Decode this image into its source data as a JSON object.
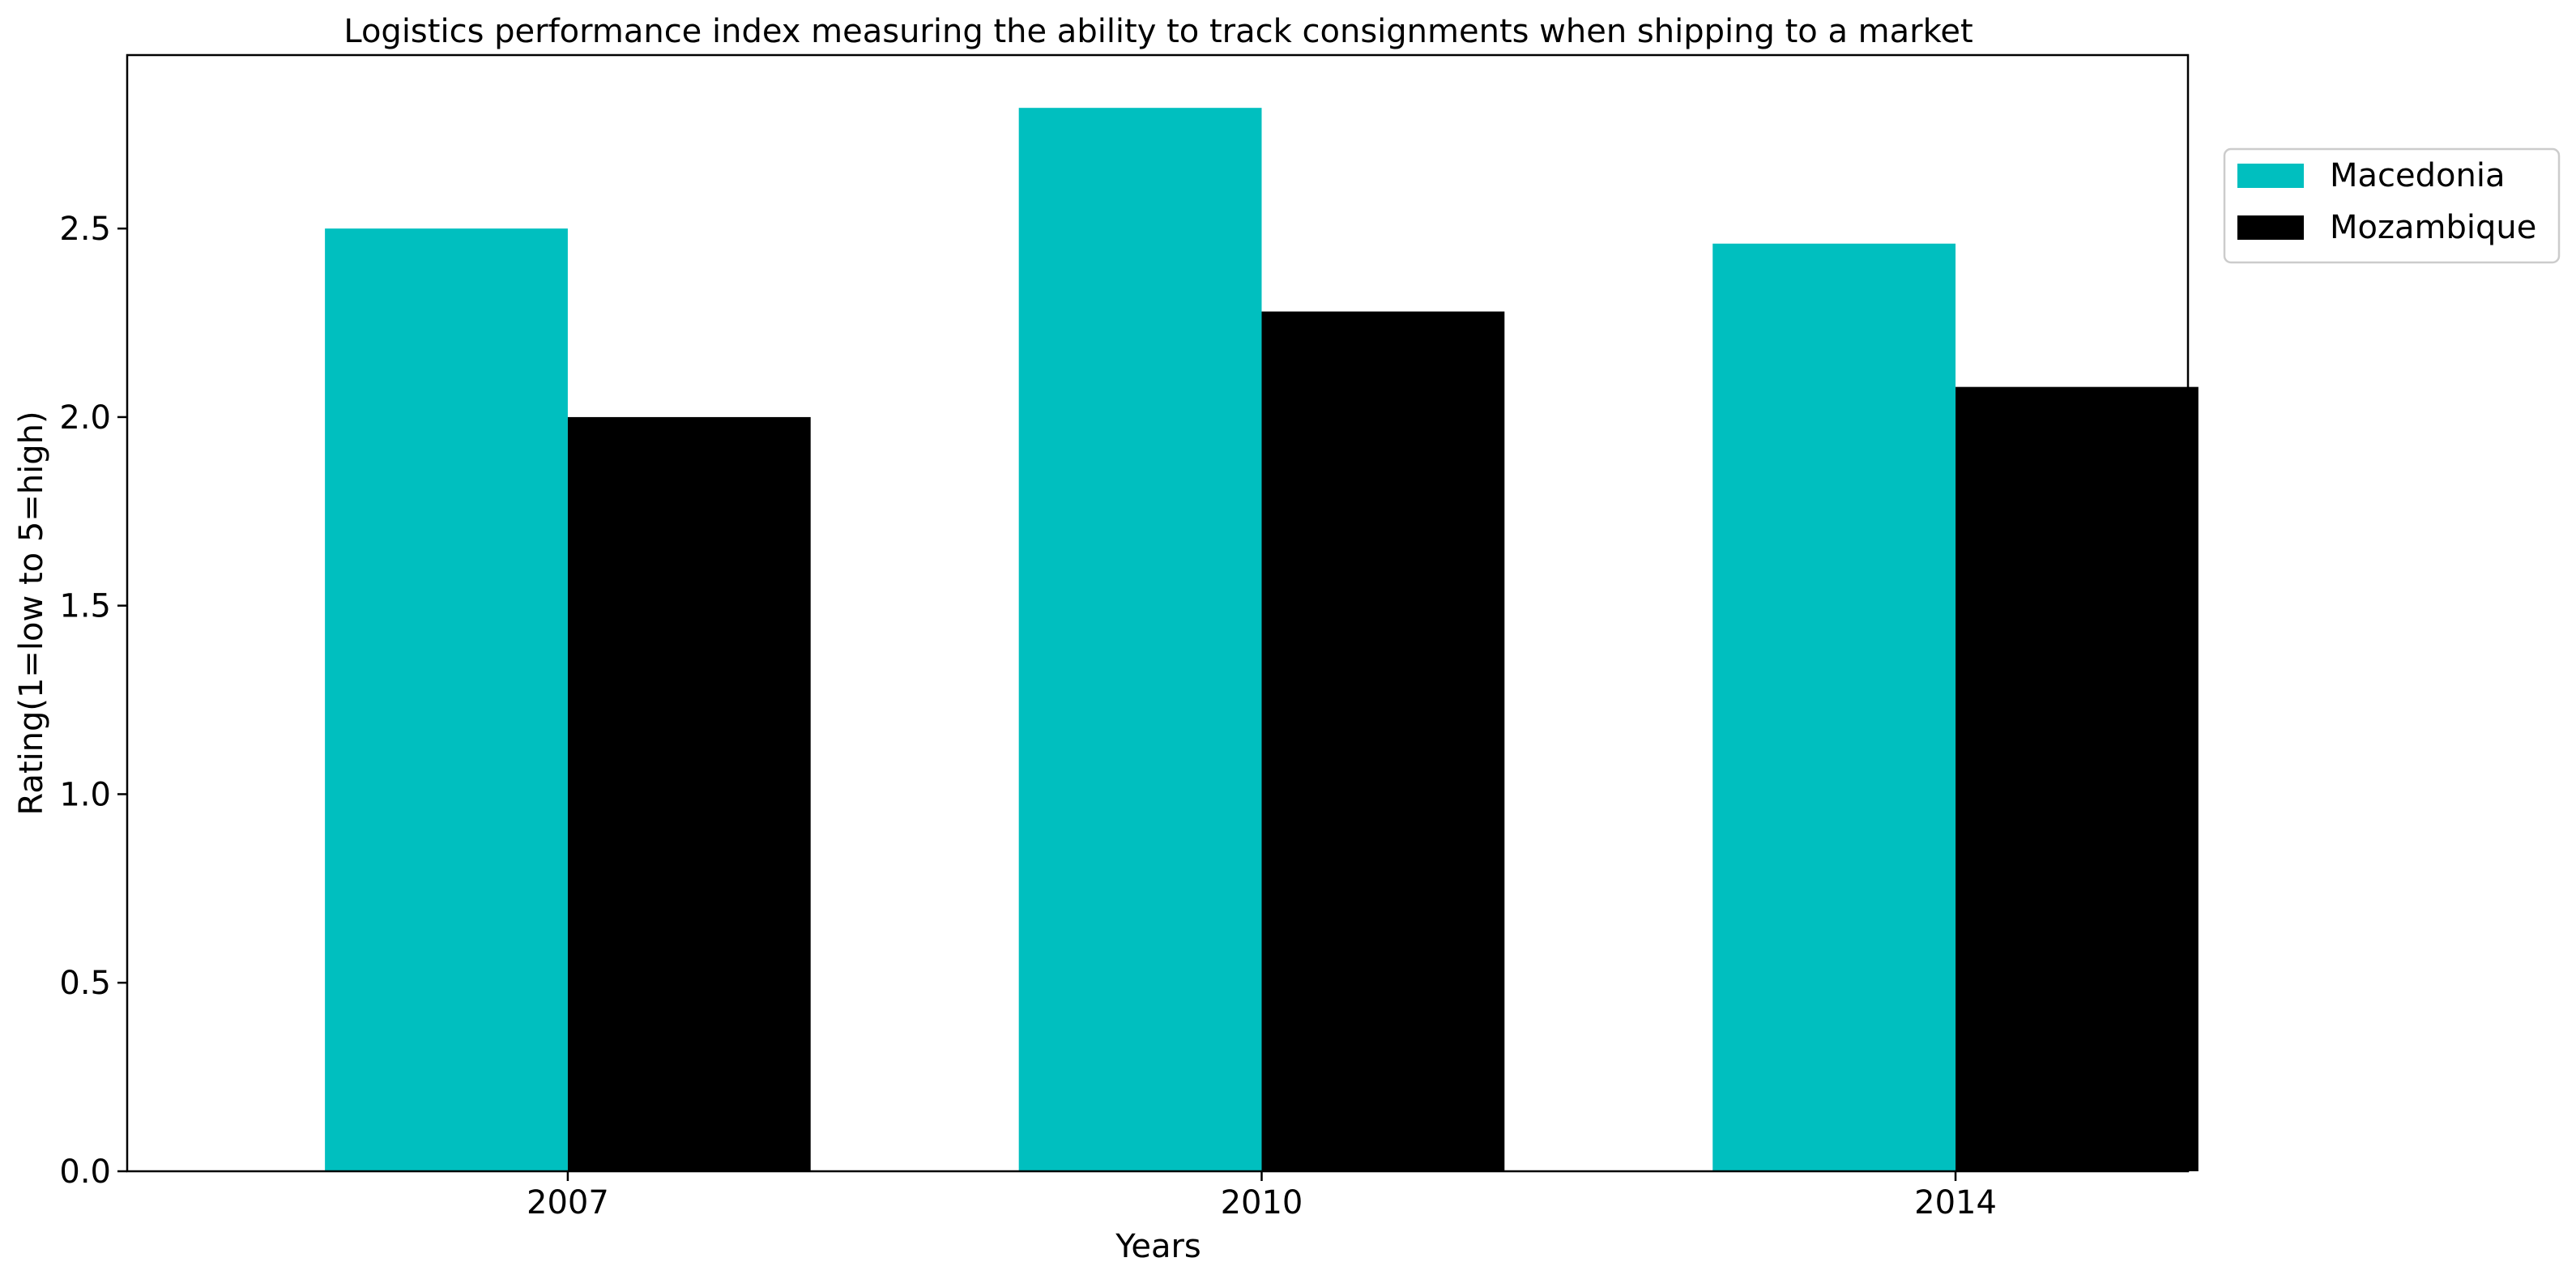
{
  "chart_data": {
    "type": "bar",
    "title": "Logistics performance index measuring the ability to track consignments when shipping to a market",
    "xlabel": "Years",
    "ylabel": "Rating(1=low to 5=high)",
    "categories": [
      "2007",
      "2010",
      "2014"
    ],
    "series": [
      {
        "name": "Macedonia",
        "color": "#00bfbf",
        "values": [
          2.5,
          2.82,
          2.46
        ]
      },
      {
        "name": "Mozambique",
        "color": "#000000",
        "values": [
          2.0,
          2.28,
          2.08
        ]
      }
    ],
    "ylim": [
      0,
      2.96
    ],
    "yticks": [
      "0.0",
      "0.5",
      "1.0",
      "1.5",
      "2.0",
      "2.5"
    ],
    "grid": false,
    "legend_position": "outside-top-right"
  }
}
